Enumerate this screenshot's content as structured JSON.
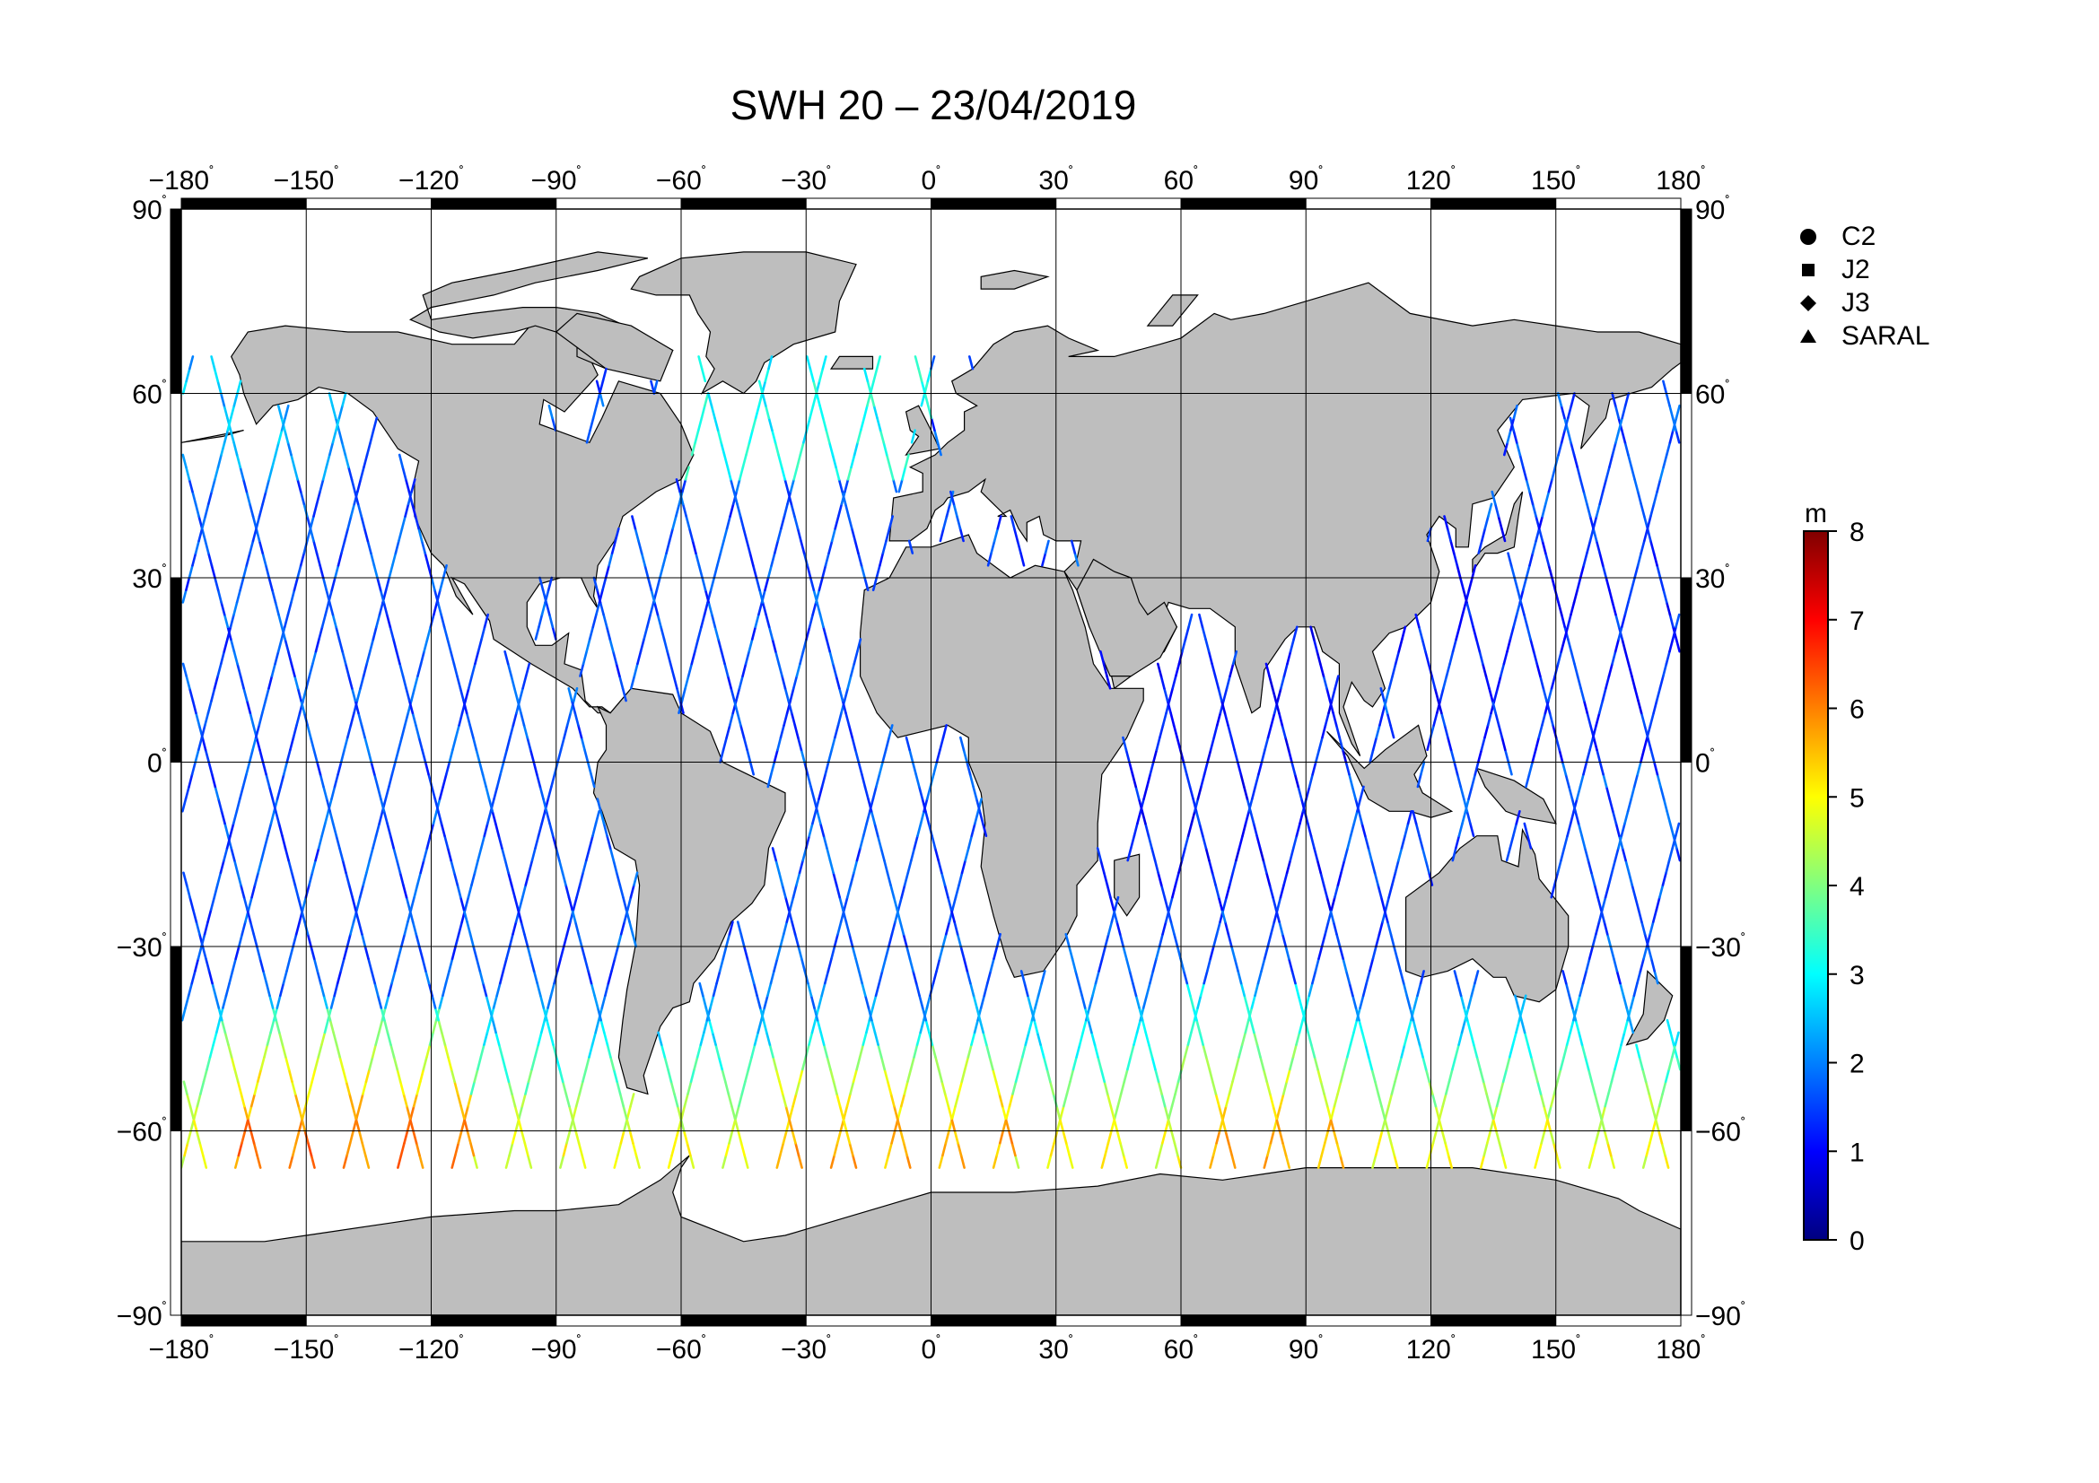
{
  "title": "SWH 20 – 23/04/2019",
  "axes": {
    "lon_ticks": [
      "−180",
      "−150",
      "−120",
      "−90",
      "−60",
      "−30",
      "0",
      "30",
      "60",
      "90",
      "120",
      "150",
      "180"
    ],
    "lat_ticks": [
      "90",
      "60",
      "30",
      "0",
      "−30",
      "−60",
      "−90"
    ],
    "degree_symbol": "˚",
    "lon_range": [
      -180,
      180
    ],
    "lat_range": [
      -90,
      90
    ],
    "grid": true
  },
  "legend": [
    {
      "label": "C2",
      "symbol": "circle"
    },
    {
      "label": "J2",
      "symbol": "square"
    },
    {
      "label": "J3",
      "symbol": "diamond"
    },
    {
      "label": "SARAL",
      "symbol": "triangle"
    }
  ],
  "colorbar": {
    "unit": "m",
    "ticks": [
      "0",
      "1",
      "2",
      "3",
      "4",
      "5",
      "6",
      "7",
      "8"
    ],
    "range": [
      0,
      8
    ],
    "colormap": [
      "#000080",
      "#0000ff",
      "#0080ff",
      "#00ffff",
      "#80ff80",
      "#ffff00",
      "#ff8000",
      "#ff0000",
      "#800000"
    ]
  },
  "colors": {
    "land": "#bebebe",
    "ocean": "#ffffff",
    "frame": "#000000"
  }
}
